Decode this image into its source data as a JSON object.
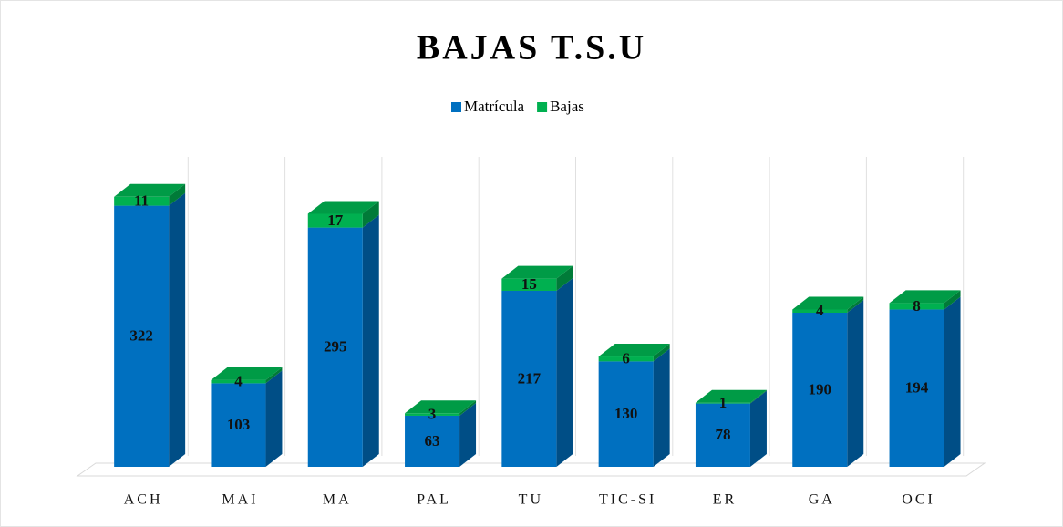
{
  "chart_data": {
    "type": "bar",
    "stacked": true,
    "title": "BAJAS T.S.U",
    "categories": [
      "ACH",
      "MAI",
      "MA",
      "PAL",
      "TU",
      "TIC-SI",
      "ER",
      "GA",
      "OCI"
    ],
    "series": [
      {
        "name": "Matrícula",
        "color": "#0070c0",
        "values": [
          322,
          103,
          295,
          63,
          217,
          130,
          78,
          190,
          194
        ]
      },
      {
        "name": "Bajas",
        "color": "#00b050",
        "values": [
          11,
          4,
          17,
          3,
          15,
          6,
          1,
          4,
          8
        ]
      }
    ],
    "ylim": [
      0,
      380
    ],
    "legend": "top"
  }
}
